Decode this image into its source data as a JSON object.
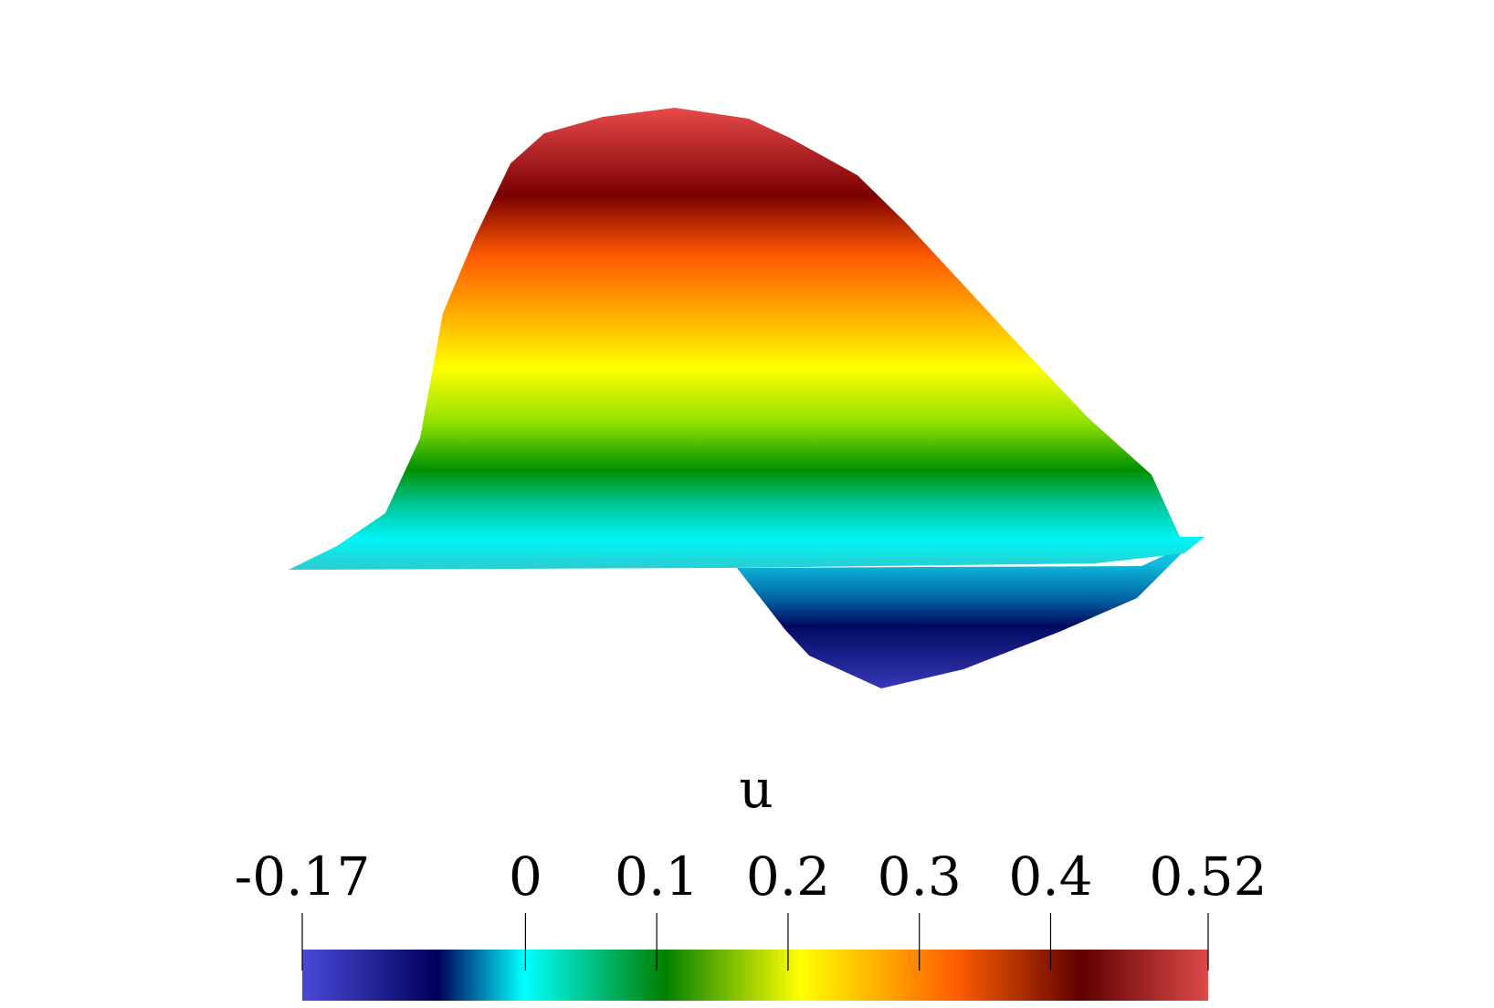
{
  "colorbar": {
    "title": "u",
    "range": [
      -0.17,
      0.52
    ],
    "ticks": [
      -0.17,
      0,
      0.1,
      0.2,
      0.3,
      0.4,
      0.52
    ]
  }
}
